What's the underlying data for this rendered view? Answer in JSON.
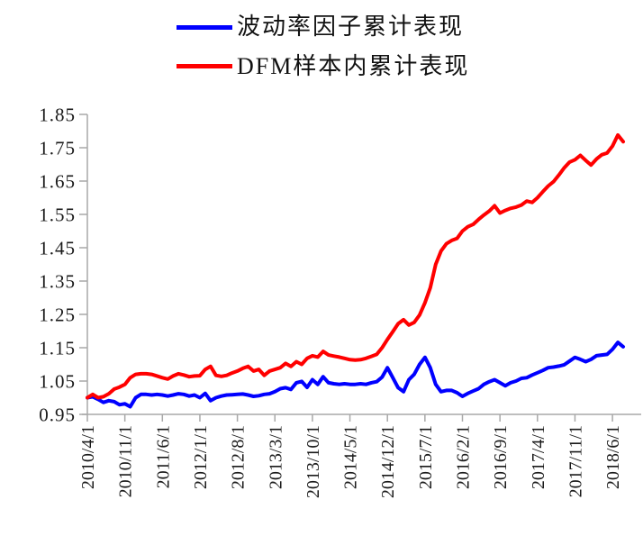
{
  "chart_data": {
    "type": "line",
    "title": "",
    "x_start": "2010/4/1",
    "x_frequency": "monthly",
    "x_ticks_every_n_points": 7,
    "x_tick_labels": [
      "2010/4/1",
      "2010/11/1",
      "2011/6/1",
      "2012/1/1",
      "2012/8/1",
      "2013/3/1",
      "2013/10/1",
      "2014/5/1",
      "2014/12/1",
      "2015/7/1",
      "2016/2/1",
      "2016/9/1",
      "2017/4/1",
      "2017/11/1",
      "2018/6/1"
    ],
    "y_tick_labels": [
      "0.95",
      "1.05",
      "1.15",
      "1.25",
      "1.35",
      "1.45",
      "1.55",
      "1.65",
      "1.75",
      "1.85"
    ],
    "ylim": [
      0.95,
      1.85
    ],
    "grid": false,
    "legend_position": "top-center",
    "axis_color": "#A8A8A8",
    "text_color": "#1A1A1A",
    "series": [
      {
        "name": "波动率因子累计表现",
        "color": "#0000FF",
        "values": [
          1.0,
          1.003,
          0.995,
          0.986,
          0.991,
          0.988,
          0.979,
          0.982,
          0.973,
          1.0,
          1.01,
          1.01,
          1.008,
          1.01,
          1.008,
          1.005,
          1.008,
          1.012,
          1.01,
          1.005,
          1.008,
          1.0,
          1.013,
          0.991,
          1.0,
          1.005,
          1.008,
          1.009,
          1.01,
          1.011,
          1.008,
          1.004,
          1.006,
          1.01,
          1.012,
          1.018,
          1.027,
          1.03,
          1.025,
          1.045,
          1.049,
          1.031,
          1.054,
          1.04,
          1.063,
          1.045,
          1.042,
          1.04,
          1.042,
          1.04,
          1.04,
          1.042,
          1.04,
          1.045,
          1.048,
          1.062,
          1.09,
          1.06,
          1.03,
          1.018,
          1.054,
          1.07,
          1.1,
          1.121,
          1.09,
          1.04,
          1.018,
          1.022,
          1.022,
          1.015,
          1.004,
          1.013,
          1.02,
          1.027,
          1.04,
          1.048,
          1.054,
          1.045,
          1.036,
          1.045,
          1.05,
          1.058,
          1.06,
          1.068,
          1.075,
          1.082,
          1.09,
          1.092,
          1.095,
          1.099,
          1.11,
          1.121,
          1.115,
          1.108,
          1.115,
          1.126,
          1.128,
          1.13,
          1.145,
          1.166,
          1.153
        ]
      },
      {
        "name": "DFM样本内累计表现",
        "color": "#FF0000",
        "values": [
          1.0,
          1.01,
          1.0,
          1.003,
          1.012,
          1.026,
          1.032,
          1.04,
          1.06,
          1.07,
          1.072,
          1.072,
          1.07,
          1.065,
          1.06,
          1.056,
          1.065,
          1.072,
          1.068,
          1.063,
          1.065,
          1.066,
          1.085,
          1.094,
          1.067,
          1.064,
          1.067,
          1.074,
          1.08,
          1.088,
          1.094,
          1.08,
          1.085,
          1.067,
          1.08,
          1.085,
          1.09,
          1.103,
          1.094,
          1.108,
          1.1,
          1.118,
          1.126,
          1.122,
          1.139,
          1.128,
          1.125,
          1.122,
          1.118,
          1.114,
          1.113,
          1.114,
          1.118,
          1.124,
          1.13,
          1.15,
          1.175,
          1.198,
          1.222,
          1.234,
          1.218,
          1.226,
          1.248,
          1.285,
          1.33,
          1.4,
          1.44,
          1.462,
          1.472,
          1.478,
          1.5,
          1.513,
          1.52,
          1.535,
          1.548,
          1.56,
          1.576,
          1.554,
          1.562,
          1.568,
          1.572,
          1.578,
          1.59,
          1.586,
          1.6,
          1.618,
          1.635,
          1.648,
          1.668,
          1.69,
          1.707,
          1.714,
          1.727,
          1.712,
          1.698,
          1.716,
          1.729,
          1.734,
          1.755,
          1.788,
          1.768
        ]
      }
    ]
  }
}
